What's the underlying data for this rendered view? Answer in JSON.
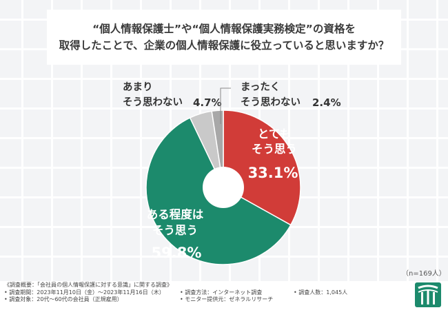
{
  "question": {
    "line1": "“個人情報保護士”や“個人情報保護実務検定”の資格を",
    "line2": "取得したことで、企業の個人情報保護に役立っていると思いますか？"
  },
  "chart_data": {
    "type": "pie",
    "variant": "donut",
    "slices": [
      {
        "label_lines": [
          "とても",
          "そう思う"
        ],
        "pct": "33.1%",
        "value": 33.1,
        "color": "#d13c38"
      },
      {
        "label_lines": [
          "ある程度は",
          "そう思う"
        ],
        "pct": "59.8%",
        "value": 59.8,
        "color": "#1c8a6c"
      },
      {
        "label_lines": [
          "あまり",
          "そう思わない"
        ],
        "pct": "4.7%",
        "value": 4.7,
        "color": "#c9c9c9"
      },
      {
        "label_lines": [
          "まったく",
          "そう思わない"
        ],
        "pct": "2.4%",
        "value": 2.4,
        "color": "#a8a8a8"
      }
    ]
  },
  "n_note": "（n=169人）",
  "footer": {
    "survey_title": "《調査概要：「会社員の個人情報保護に対する意識」に関する調査》",
    "period": "• 調査期間：2023年11月10日（金）～2023年11月16日（木）",
    "method": "• 調査方法：インターネット調査",
    "count": "• 調査人数：1,045人",
    "target": "• 調査対象：20代～60代の会社員（正規雇用）",
    "provider": "• モニター提供元：ゼネラルリサーチ"
  },
  "colors": {
    "logo": "#1c8a6c",
    "label_dark": "#333333"
  }
}
